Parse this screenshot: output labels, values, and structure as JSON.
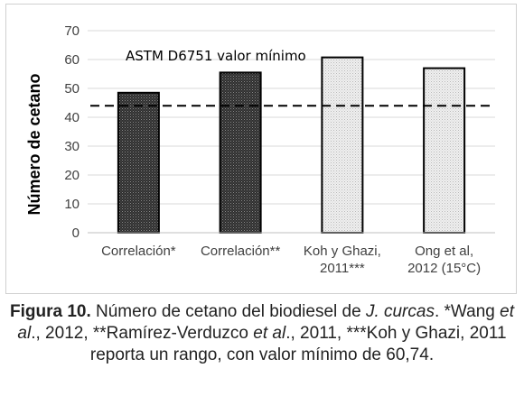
{
  "chart_data": {
    "type": "bar",
    "categories": [
      [
        "Correlación*"
      ],
      [
        "Correlación**"
      ],
      [
        "Koh y Ghazi,",
        "2011***"
      ],
      [
        "Ong et al,",
        "2012 (15°C)"
      ]
    ],
    "values": [
      48.5,
      55.5,
      60.74,
      57
    ],
    "bar_styles": [
      "dark",
      "dark",
      "light",
      "light"
    ],
    "ylabel": "Número de cetano",
    "ylim": [
      0,
      70
    ],
    "yticks": [
      0,
      10,
      20,
      30,
      40,
      50,
      60,
      70
    ],
    "grid": true,
    "reference_line": {
      "value": 44,
      "label": "ASTM D6751 valor mínimo",
      "style": "dashed"
    },
    "colors": {
      "dark_fill": "#3a3a3a",
      "light_fill": "#e9e9e9",
      "grid": "#d9d9d9",
      "ref_line": "#000000"
    }
  },
  "caption": {
    "label": "Figura 10.",
    "text_1": " Número de cetano del biodiesel de ",
    "ital_1": "J. curcas",
    "text_2": ". *Wang ",
    "ital_2": "et al",
    "text_3": "., 2012, **Ramírez-Verduzco ",
    "ital_3": "et al",
    "text_4": "., 2011, ***Koh y Ghazi, 2011 reporta un rango, con valor mínimo de 60,74."
  }
}
